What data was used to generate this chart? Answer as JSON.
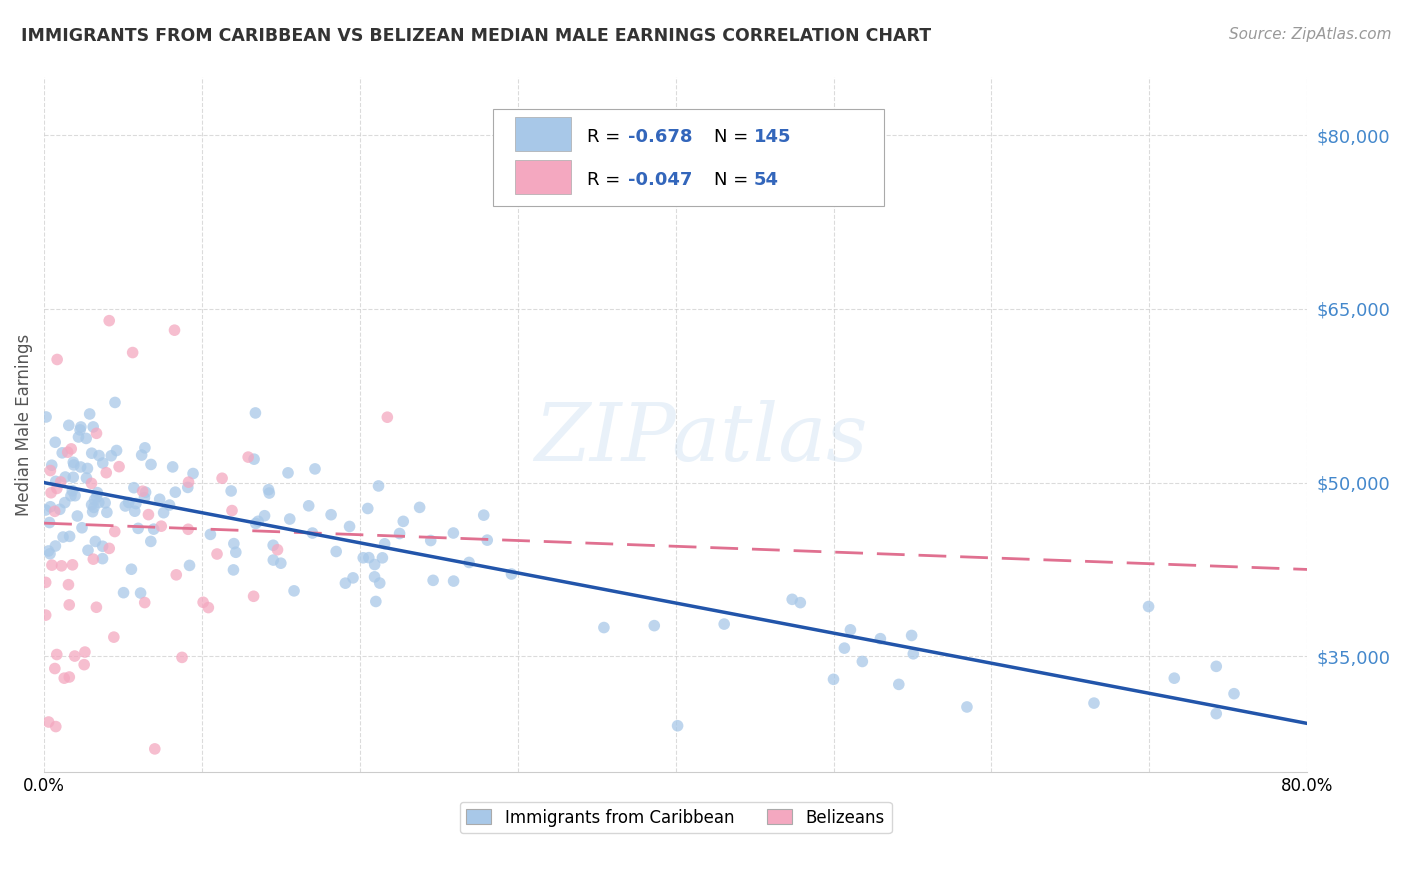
{
  "title": "IMMIGRANTS FROM CARIBBEAN VS BELIZEAN MEDIAN MALE EARNINGS CORRELATION CHART",
  "source": "Source: ZipAtlas.com",
  "ylabel": "Median Male Earnings",
  "legend_labels": [
    "Immigrants from Caribbean",
    "Belizeans"
  ],
  "caribbean_color": "#a8c8e8",
  "belizean_color": "#f4a8c0",
  "caribbean_line_color": "#2255aa",
  "belizean_line_color": "#e07090",
  "R_caribbean": -0.678,
  "N_caribbean": 145,
  "R_belizean": -0.047,
  "N_belizean": 54,
  "ytick_labels": [
    "$35,000",
    "$50,000",
    "$65,000",
    "$80,000"
  ],
  "ytick_values": [
    35000,
    50000,
    65000,
    80000
  ],
  "watermark": "ZIPatlas",
  "background_color": "#ffffff",
  "plot_bg_color": "#ffffff",
  "title_color": "#333333",
  "source_color": "#999999",
  "axis_label_color": "#555555",
  "tick_label_color": "#4488cc",
  "grid_color": "#cccccc",
  "xlim": [
    0.0,
    0.8
  ],
  "ylim": [
    25000,
    85000
  ],
  "carib_intercept": 50000,
  "carib_slope": -26000,
  "beliz_intercept": 46500,
  "beliz_slope": -5000
}
